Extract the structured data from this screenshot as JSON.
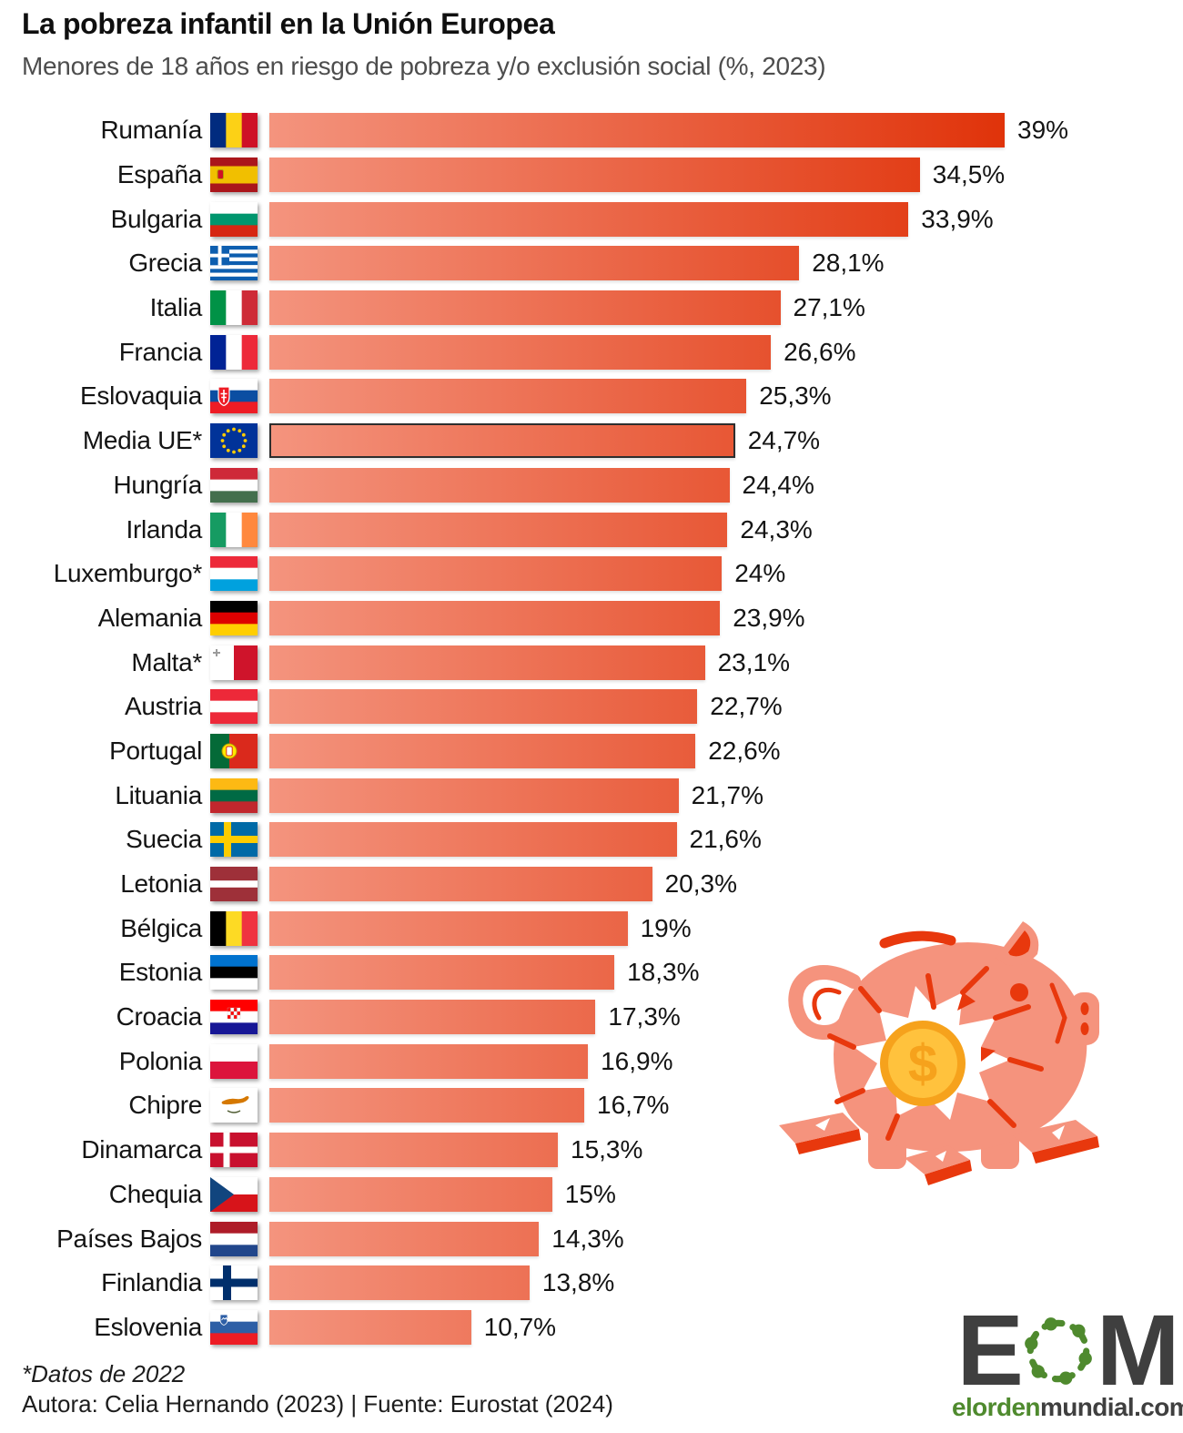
{
  "header": {
    "title": "La pobreza infantil en la Unión Europea",
    "subtitle": "Menores de 18 años en riesgo de pobreza y/o exclusión social (%, 2023)"
  },
  "chart_data": {
    "type": "bar",
    "orientation": "horizontal",
    "title": "La pobreza infantil en la Unión Europea",
    "subtitle": "Menores de 18 años en riesgo de pobreza y/o exclusión social (%, 2023)",
    "unit": "%",
    "xlim": [
      0,
      39
    ],
    "bar_gradient": [
      "#F4947E",
      "#E0330A"
    ],
    "highlight_border": "#2E2E2E",
    "rows": [
      {
        "label": "Rumanía",
        "flag": "romania",
        "value": 39,
        "display": "39%",
        "highlight": false
      },
      {
        "label": "España",
        "flag": "spain",
        "value": 34.5,
        "display": "34,5%",
        "highlight": false
      },
      {
        "label": "Bulgaria",
        "flag": "bulgaria",
        "value": 33.9,
        "display": "33,9%",
        "highlight": false
      },
      {
        "label": "Grecia",
        "flag": "greece",
        "value": 28.1,
        "display": "28,1%",
        "highlight": false
      },
      {
        "label": "Italia",
        "flag": "italy",
        "value": 27.1,
        "display": "27,1%",
        "highlight": false
      },
      {
        "label": "Francia",
        "flag": "france",
        "value": 26.6,
        "display": "26,6%",
        "highlight": false
      },
      {
        "label": "Eslovaquia",
        "flag": "slovakia",
        "value": 25.3,
        "display": "25,3%",
        "highlight": false
      },
      {
        "label": "Media UE*",
        "flag": "eu",
        "value": 24.7,
        "display": "24,7%",
        "highlight": true
      },
      {
        "label": "Hungría",
        "flag": "hungary",
        "value": 24.4,
        "display": "24,4%",
        "highlight": false
      },
      {
        "label": "Irlanda",
        "flag": "ireland",
        "value": 24.3,
        "display": "24,3%",
        "highlight": false
      },
      {
        "label": "Luxemburgo*",
        "flag": "luxembourg",
        "value": 24,
        "display": "24%",
        "highlight": false
      },
      {
        "label": "Alemania",
        "flag": "germany",
        "value": 23.9,
        "display": "23,9%",
        "highlight": false
      },
      {
        "label": "Malta*",
        "flag": "malta",
        "value": 23.1,
        "display": "23,1%",
        "highlight": false
      },
      {
        "label": "Austria",
        "flag": "austria",
        "value": 22.7,
        "display": "22,7%",
        "highlight": false
      },
      {
        "label": "Portugal",
        "flag": "portugal",
        "value": 22.6,
        "display": "22,6%",
        "highlight": false
      },
      {
        "label": "Lituania",
        "flag": "lithuania",
        "value": 21.7,
        "display": "21,7%",
        "highlight": false
      },
      {
        "label": "Suecia",
        "flag": "sweden",
        "value": 21.6,
        "display": "21,6%",
        "highlight": false
      },
      {
        "label": "Letonia",
        "flag": "latvia",
        "value": 20.3,
        "display": "20,3%",
        "highlight": false
      },
      {
        "label": "Bélgica",
        "flag": "belgium",
        "value": 19,
        "display": "19%",
        "highlight": false
      },
      {
        "label": "Estonia",
        "flag": "estonia",
        "value": 18.3,
        "display": "18,3%",
        "highlight": false
      },
      {
        "label": "Croacia",
        "flag": "croatia",
        "value": 17.3,
        "display": "17,3%",
        "highlight": false
      },
      {
        "label": "Polonia",
        "flag": "poland",
        "value": 16.9,
        "display": "16,9%",
        "highlight": false
      },
      {
        "label": "Chipre",
        "flag": "cyprus",
        "value": 16.7,
        "display": "16,7%",
        "highlight": false
      },
      {
        "label": "Dinamarca",
        "flag": "denmark",
        "value": 15.3,
        "display": "15,3%",
        "highlight": false
      },
      {
        "label": "Chequia",
        "flag": "czechia",
        "value": 15,
        "display": "15%",
        "highlight": false
      },
      {
        "label": "Países Bajos",
        "flag": "netherlands",
        "value": 14.3,
        "display": "14,3%",
        "highlight": false
      },
      {
        "label": "Finlandia",
        "flag": "finland",
        "value": 13.8,
        "display": "13,8%",
        "highlight": false
      },
      {
        "label": "Eslovenia",
        "flag": "slovenia",
        "value": 10.7,
        "display": "10,7%",
        "highlight": false
      }
    ]
  },
  "footer": {
    "footnote": "*Datos de 2022",
    "credits": "Autora: Celia Hernando (2023) | Fuente: Eurostat (2024)"
  },
  "logo": {
    "letter_e": "E",
    "letter_m": "M",
    "domain_green": "elorden",
    "domain_gray": "mundial.com",
    "green": "#4F8A2E",
    "gray": "#3F3F3F"
  },
  "illustration": "broken-piggy-bank-with-dollar-coin"
}
